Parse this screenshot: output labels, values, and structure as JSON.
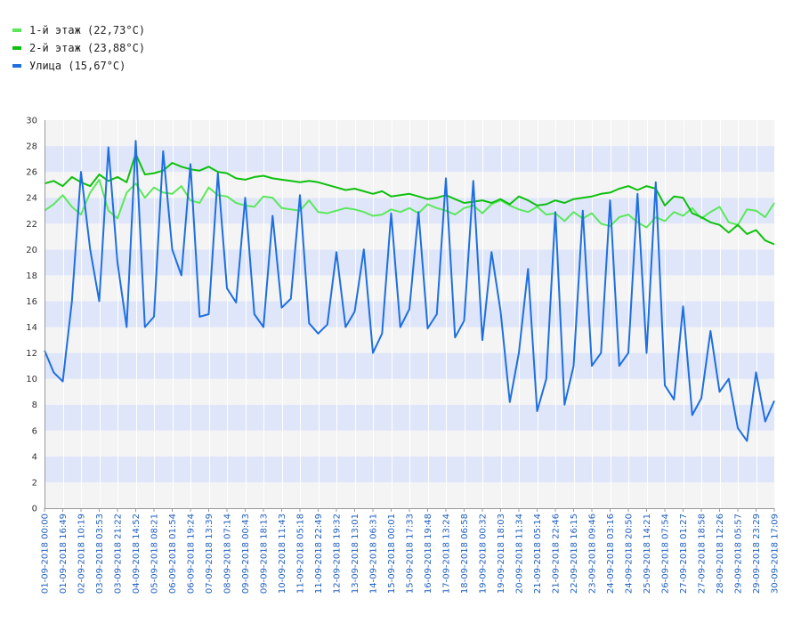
{
  "legend": [
    {
      "label": "1-й этаж (22,73°C)",
      "color": "#5be85b"
    },
    {
      "label": "2-й этаж (23,88°C)",
      "color": "#0ec00e"
    },
    {
      "label": "Улица (15,67°C)",
      "color": "#1e6fe0"
    }
  ],
  "chart_data": {
    "type": "line",
    "title": "",
    "xlabel": "",
    "ylabel": "",
    "ylim": [
      0,
      30
    ],
    "yticks": [
      0,
      2,
      4,
      6,
      8,
      10,
      12,
      14,
      16,
      18,
      20,
      22,
      24,
      26,
      28,
      30
    ],
    "grid": true,
    "legend_position": "top-left",
    "band_colors": [
      "#f4f4f4",
      "#dfe6fa"
    ],
    "x_tick_labels": [
      "01-09-2018 00:00",
      "01-09-2018 16:49",
      "02-09-2018 10:19",
      "03-09-2018 03:53",
      "03-09-2018 21:22",
      "04-09-2018 14:52",
      "05-09-2018 08:21",
      "06-09-2018 01:54",
      "06-09-2018 19:24",
      "07-09-2018 13:39",
      "08-09-2018 07:14",
      "09-09-2018 00:43",
      "09-09-2018 18:13",
      "10-09-2018 11:43",
      "11-09-2018 05:18",
      "11-09-2018 22:49",
      "12-09-2018 19:32",
      "13-09-2018 13:01",
      "14-09-2018 06:31",
      "15-09-2018 00:01",
      "15-09-2018 17:33",
      "16-09-2018 19:48",
      "17-09-2018 13:24",
      "18-09-2018 06:58",
      "19-09-2018 00:32",
      "19-09-2018 18:03",
      "20-09-2018 11:34",
      "21-09-2018 05:14",
      "21-09-2018 22:46",
      "22-09-2018 16:15",
      "23-09-2018 09:46",
      "24-09-2018 03:16",
      "24-09-2018 20:50",
      "25-09-2018 14:21",
      "26-09-2018 07:54",
      "27-09-2018 01:27",
      "27-09-2018 18:58",
      "28-09-2018 12:26",
      "29-09-2018 05:57",
      "29-09-2018 23:29",
      "30-09-2018 17:09"
    ],
    "series": [
      {
        "name": "1-й этаж (22,73°C)",
        "color": "#5be85b",
        "x": [
          0,
          0.5,
          1,
          1.5,
          2,
          2.5,
          3,
          3.5,
          4,
          4.5,
          5,
          5.5,
          6,
          6.5,
          7,
          7.5,
          8,
          8.5,
          9,
          9.5,
          10,
          10.5,
          11,
          11.5,
          12,
          12.5,
          13,
          13.5,
          14,
          14.5,
          15,
          15.5,
          16,
          16.5,
          17,
          17.5,
          18,
          18.5,
          19,
          19.5,
          20,
          20.5,
          21,
          21.5,
          22,
          22.5,
          23,
          23.5,
          24,
          24.5,
          25,
          25.5,
          26,
          26.5,
          27,
          27.5,
          28,
          28.5,
          29,
          29.5,
          30,
          30.5,
          31,
          31.5,
          32,
          32.5,
          33,
          33.5,
          34,
          34.5,
          35,
          35.5,
          36,
          36.5,
          37,
          37.5,
          38,
          38.5,
          39,
          39.5,
          40
        ],
        "values": [
          23.0,
          23.5,
          24.2,
          23.3,
          22.7,
          24.4,
          25.4,
          23.0,
          22.4,
          24.4,
          25.1,
          24.0,
          24.8,
          24.4,
          24.3,
          24.9,
          23.8,
          23.6,
          24.8,
          24.2,
          24.1,
          23.6,
          23.4,
          23.3,
          24.1,
          24.0,
          23.2,
          23.1,
          23.0,
          23.8,
          22.9,
          22.8,
          23.0,
          23.2,
          23.1,
          22.9,
          22.6,
          22.7,
          23.1,
          22.9,
          23.2,
          22.8,
          23.5,
          23.2,
          23.0,
          22.7,
          23.2,
          23.4,
          22.8,
          23.5,
          23.8,
          23.4,
          23.1,
          22.9,
          23.3,
          22.7,
          22.8,
          22.2,
          22.9,
          22.4,
          22.8,
          22.0,
          21.8,
          22.5,
          22.7,
          22.1,
          21.7,
          22.5,
          22.2,
          22.9,
          22.6,
          23.2,
          22.4,
          22.9,
          23.3,
          22.1,
          21.9,
          23.1,
          23.0,
          22.5,
          23.6
        ]
      },
      {
        "name": "2-й этаж (23,88°C)",
        "color": "#0ec00e",
        "x": [
          0,
          0.5,
          1,
          1.5,
          2,
          2.5,
          3,
          3.5,
          4,
          4.5,
          5,
          5.5,
          6,
          6.5,
          7,
          7.5,
          8,
          8.5,
          9,
          9.5,
          10,
          10.5,
          11,
          11.5,
          12,
          12.5,
          13,
          13.5,
          14,
          14.5,
          15,
          15.5,
          16,
          16.5,
          17,
          17.5,
          18,
          18.5,
          19,
          19.5,
          20,
          20.5,
          21,
          21.5,
          22,
          22.5,
          23,
          23.5,
          24,
          24.5,
          25,
          25.5,
          26,
          26.5,
          27,
          27.5,
          28,
          28.5,
          29,
          29.5,
          30,
          30.5,
          31,
          31.5,
          32,
          32.5,
          33,
          33.5,
          34,
          34.5,
          35,
          35.5,
          36,
          36.5,
          37,
          37.5,
          38,
          38.5,
          39,
          39.5,
          40
        ],
        "values": [
          25.1,
          25.3,
          24.9,
          25.6,
          25.2,
          24.9,
          25.8,
          25.3,
          25.6,
          25.2,
          27.4,
          25.8,
          25.9,
          26.1,
          26.7,
          26.4,
          26.2,
          26.1,
          26.4,
          26.0,
          25.9,
          25.5,
          25.4,
          25.6,
          25.7,
          25.5,
          25.4,
          25.3,
          25.2,
          25.3,
          25.2,
          25.0,
          24.8,
          24.6,
          24.7,
          24.5,
          24.3,
          24.5,
          24.1,
          24.2,
          24.3,
          24.1,
          23.9,
          24.0,
          24.2,
          23.9,
          23.6,
          23.7,
          23.8,
          23.6,
          23.9,
          23.5,
          24.1,
          23.8,
          23.4,
          23.5,
          23.8,
          23.6,
          23.9,
          24.0,
          24.1,
          24.3,
          24.4,
          24.7,
          24.9,
          24.6,
          24.9,
          24.7,
          23.4,
          24.1,
          24.0,
          22.8,
          22.5,
          22.1,
          21.9,
          21.3,
          21.9,
          21.2,
          21.5,
          20.7,
          20.4
        ]
      },
      {
        "name": "Улица (15,67°C)",
        "color": "#1e6fe0",
        "x": [
          0,
          0.5,
          1,
          1.5,
          2,
          2.5,
          3,
          3.5,
          4,
          4.5,
          5,
          5.5,
          6,
          6.5,
          7,
          7.5,
          8,
          8.5,
          9,
          9.5,
          10,
          10.5,
          11,
          11.5,
          12,
          12.5,
          13,
          13.5,
          14,
          14.5,
          15,
          15.5,
          16,
          16.5,
          17,
          17.5,
          18,
          18.5,
          19,
          19.5,
          20,
          20.5,
          21,
          21.5,
          22,
          22.5,
          23,
          23.5,
          24,
          24.5,
          25,
          25.5,
          26,
          26.5,
          27,
          27.5,
          28,
          28.5,
          29,
          29.5,
          30,
          30.5,
          31,
          31.5,
          32,
          32.5,
          33,
          33.5,
          34,
          34.5,
          35,
          35.5,
          36,
          36.5,
          37,
          37.5,
          38,
          38.5,
          39,
          39.5,
          40
        ],
        "values": [
          12.2,
          10.5,
          9.8,
          16.0,
          26.0,
          20.0,
          16.0,
          27.9,
          19.0,
          14.0,
          28.4,
          14.0,
          14.8,
          27.6,
          20.0,
          18.0,
          26.6,
          14.8,
          15.0,
          25.9,
          17.0,
          15.9,
          24.0,
          15.0,
          14.0,
          22.6,
          15.5,
          16.2,
          24.2,
          14.3,
          13.5,
          14.2,
          19.8,
          14.0,
          15.2,
          20.0,
          12.0,
          13.5,
          22.8,
          14.0,
          15.4,
          22.9,
          13.9,
          15.0,
          25.5,
          13.2,
          14.5,
          25.3,
          13.0,
          19.8,
          15.2,
          8.2,
          12.0,
          18.5,
          7.5,
          10.0,
          22.9,
          8.0,
          11.0,
          23.0,
          11.0,
          12.0,
          23.8,
          11.0,
          12.0,
          24.3,
          12.0,
          25.2,
          9.5,
          8.4,
          15.6,
          7.2,
          8.5,
          13.7,
          9.0,
          10.0,
          6.2,
          5.2,
          10.5,
          6.7,
          8.3
        ]
      }
    ]
  }
}
